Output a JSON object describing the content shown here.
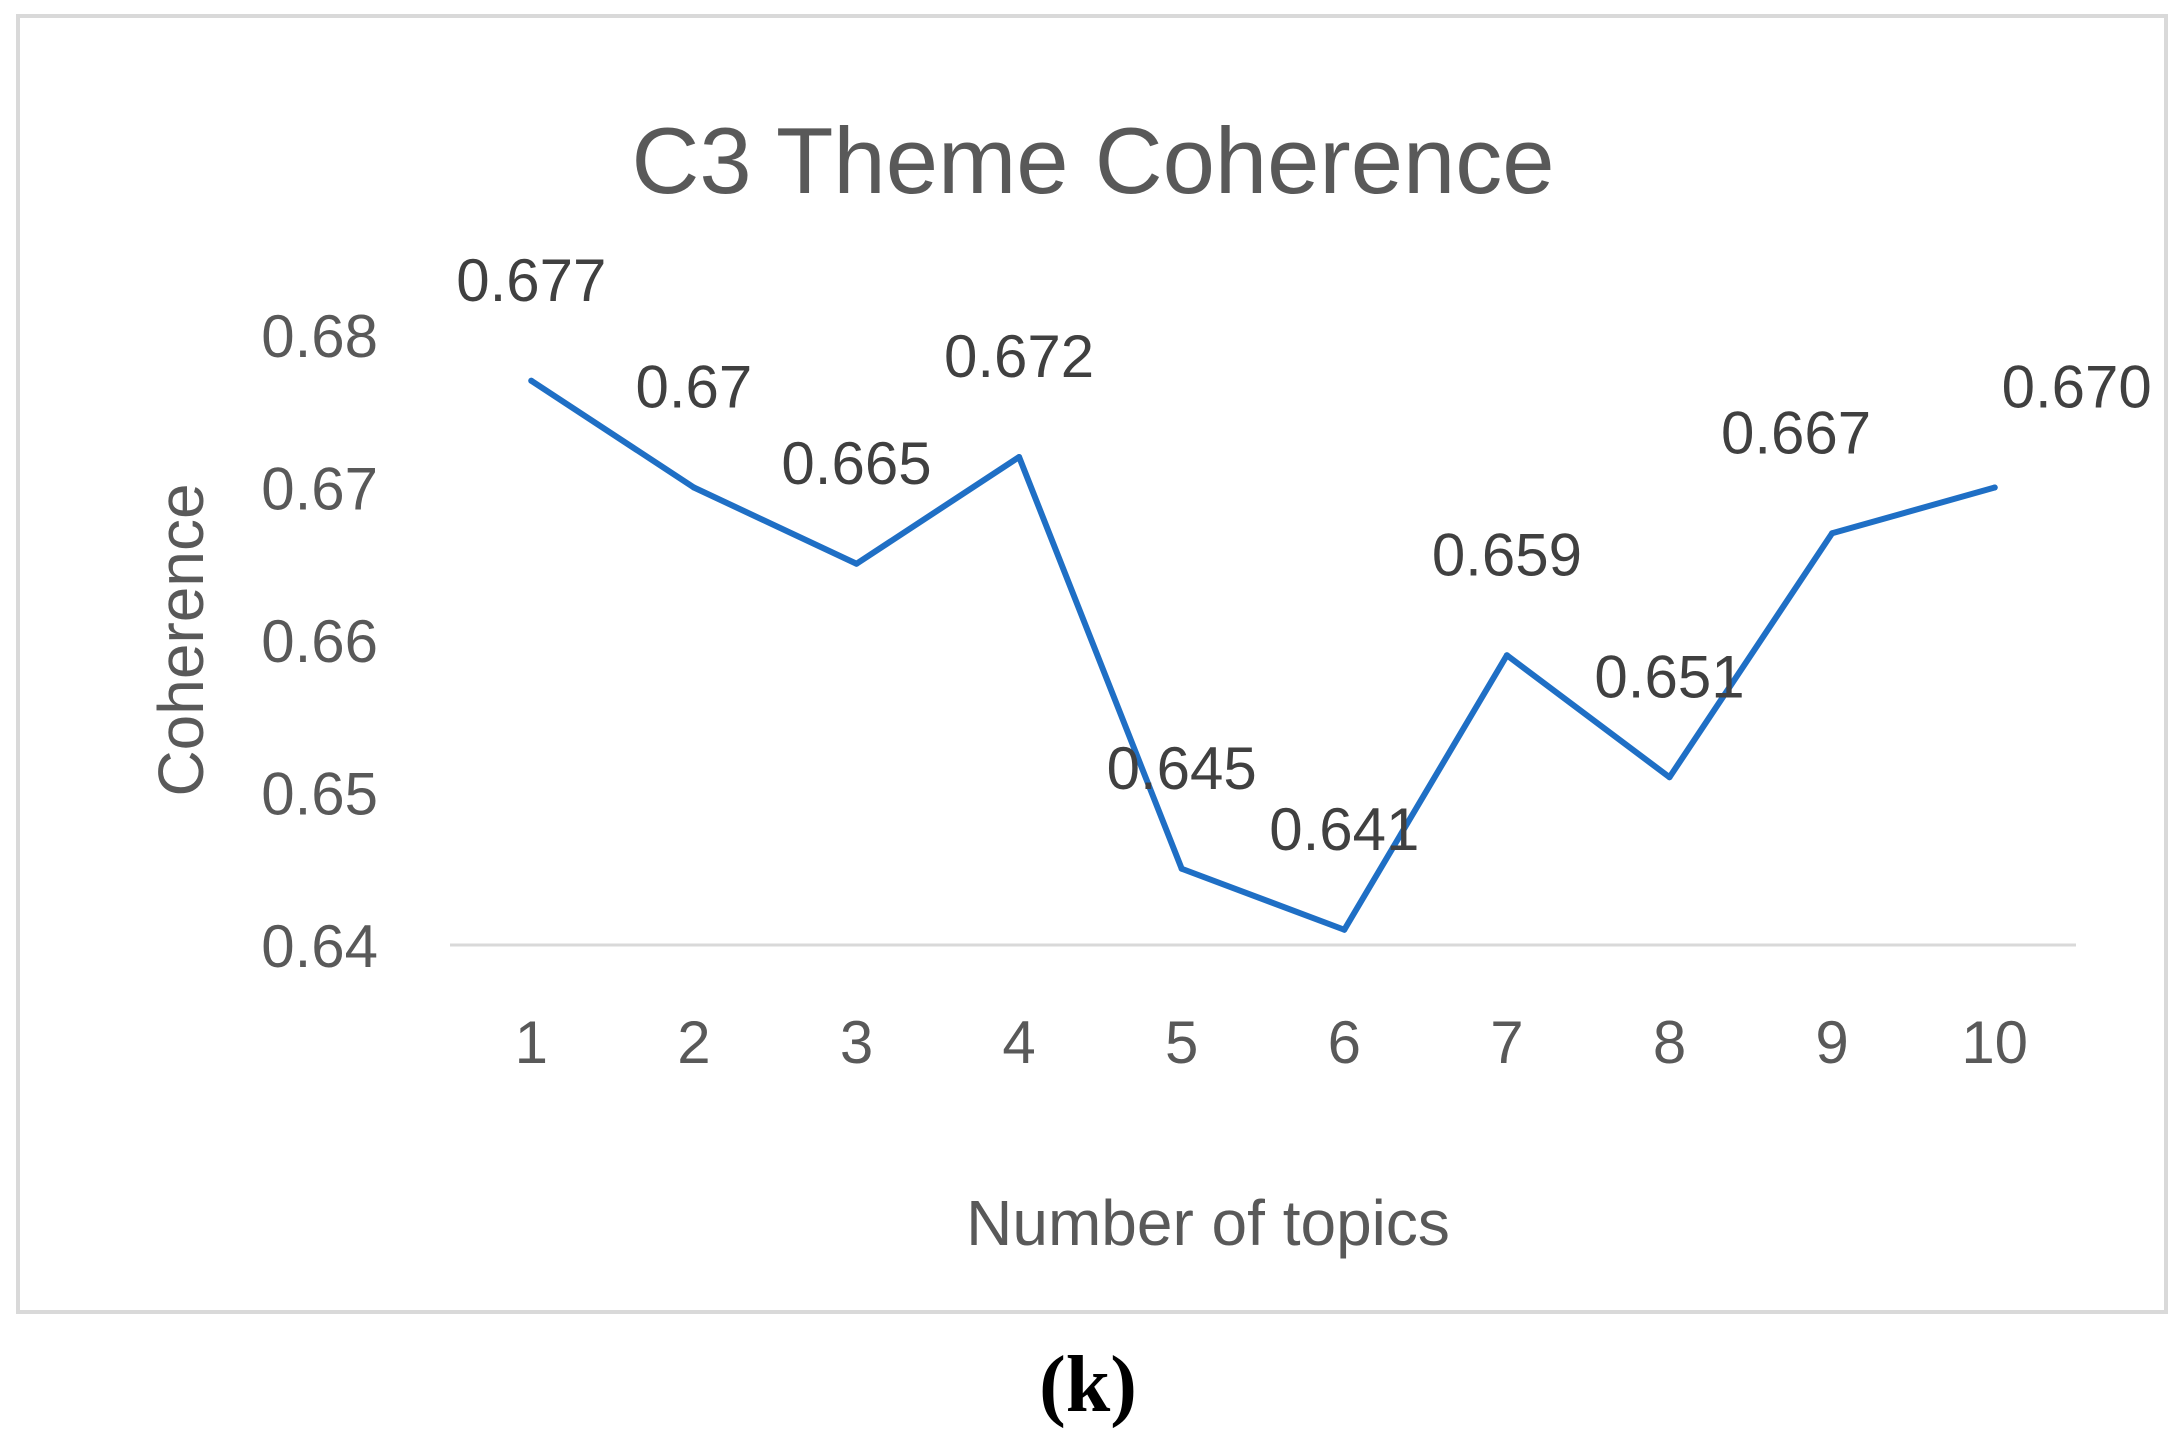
{
  "panel_label": "(k)",
  "chart_data": {
    "type": "line",
    "title": "C3 Theme Coherence",
    "xlabel": "Number of topics",
    "ylabel": "Coherence",
    "categories": [
      "1",
      "2",
      "3",
      "4",
      "5",
      "6",
      "7",
      "8",
      "9",
      "10"
    ],
    "values": [
      0.677,
      0.67,
      0.665,
      0.672,
      0.645,
      0.641,
      0.659,
      0.651,
      0.667,
      0.67
    ],
    "data_labels": [
      "0.677",
      "0.67",
      "0.665",
      "0.672",
      "0.645",
      "0.641",
      "0.659",
      "0.651",
      "0.667",
      "0.670"
    ],
    "yticks": [
      "0.64",
      "0.65",
      "0.66",
      "0.67",
      "0.68"
    ],
    "ylim": [
      0.64,
      0.68
    ],
    "grid": false,
    "legend": "none",
    "colors": {
      "line": "#1f6fc5",
      "text": "#595959",
      "data_label": "#404040",
      "axis": "#d9d9d9"
    }
  }
}
